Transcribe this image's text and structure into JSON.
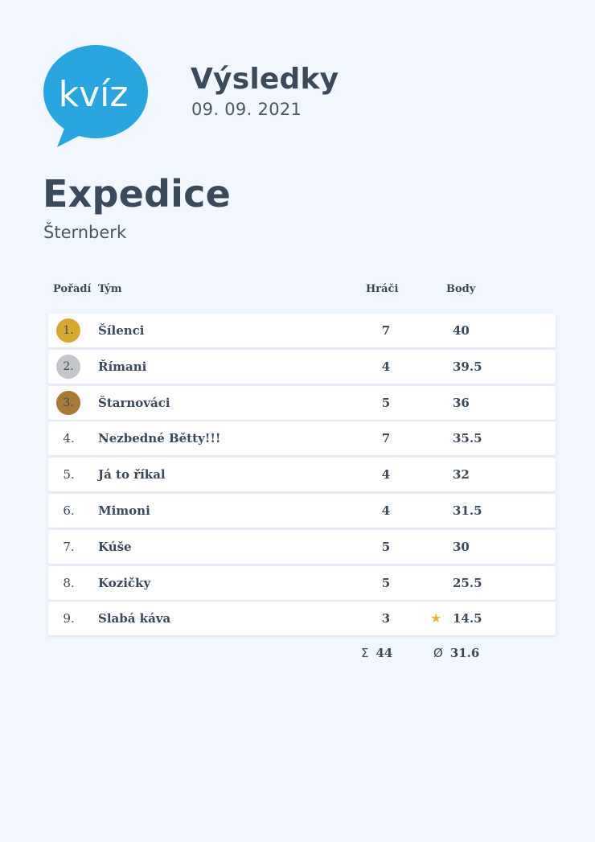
{
  "logo": {
    "text": "kvíz",
    "color": "#29a6df"
  },
  "header": {
    "title": "Výsledky",
    "date": "09. 09. 2021"
  },
  "venue": {
    "name": "Expedice",
    "city": "Šternberk"
  },
  "columns": {
    "rank": "Pořadí",
    "team": "Tým",
    "players": "Hráči",
    "points": "Body"
  },
  "results": [
    {
      "rank": "1.",
      "team": "Šílenci",
      "players": "7",
      "points": "40",
      "medal": "gold"
    },
    {
      "rank": "2.",
      "team": "Římani",
      "players": "4",
      "points": "39.5",
      "medal": "silver"
    },
    {
      "rank": "3.",
      "team": "Štarnováci",
      "players": "5",
      "points": "36",
      "medal": "bronze"
    },
    {
      "rank": "4.",
      "team": "Nezbedné Bětty!!!",
      "players": "7",
      "points": "35.5"
    },
    {
      "rank": "5.",
      "team": "Já to říkal",
      "players": "4",
      "points": "32"
    },
    {
      "rank": "6.",
      "team": "Mimoni",
      "players": "4",
      "points": "31.5"
    },
    {
      "rank": "7.",
      "team": "Kúše",
      "players": "5",
      "points": "30"
    },
    {
      "rank": "8.",
      "team": "Kozičky",
      "players": "5",
      "points": "25.5"
    },
    {
      "rank": "9.",
      "team": "Slabá káva",
      "players": "3",
      "points": "14.5",
      "star": true
    }
  ],
  "totals": {
    "sum_symbol": "Σ",
    "players_sum": "44",
    "avg_symbol": "Ø",
    "points_avg": "31.6"
  },
  "colors": {
    "background": "#f2f6fd",
    "text": "#3b4a5a",
    "gold": "#d6aa32",
    "silver": "#c4c6c9",
    "bronze": "#a87a38",
    "star": "#e8b92b"
  }
}
